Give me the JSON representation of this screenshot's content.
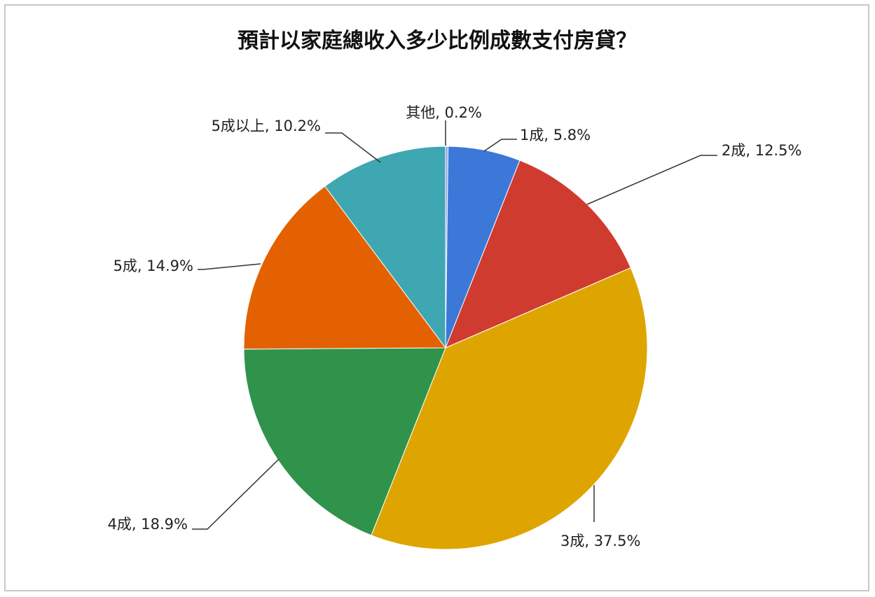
{
  "chart_data": {
    "type": "pie",
    "title": "預計以家庭總收入多少比例成數支付房貸？",
    "slices": [
      {
        "label": "其他",
        "value": 0.2,
        "display": "其他, 0.2%",
        "color": "#9aa0e6"
      },
      {
        "label": "1成",
        "value": 5.8,
        "display": "1成, 5.8%",
        "color": "#3c78d8"
      },
      {
        "label": "2成",
        "value": 12.5,
        "display": "2成, 12.5%",
        "color": "#d03b2f"
      },
      {
        "label": "3成",
        "value": 37.5,
        "display": "3成, 37.5%",
        "color": "#dea500"
      },
      {
        "label": "4成",
        "value": 18.9,
        "display": "4成, 18.9%",
        "color": "#2f934b"
      },
      {
        "label": "5成",
        "value": 14.9,
        "display": "5成, 14.9%",
        "color": "#e36100"
      },
      {
        "label": "5成以上",
        "value": 10.2,
        "display": "5成以上, 10.2%",
        "color": "#3ea7b1"
      }
    ],
    "legend": "none"
  }
}
